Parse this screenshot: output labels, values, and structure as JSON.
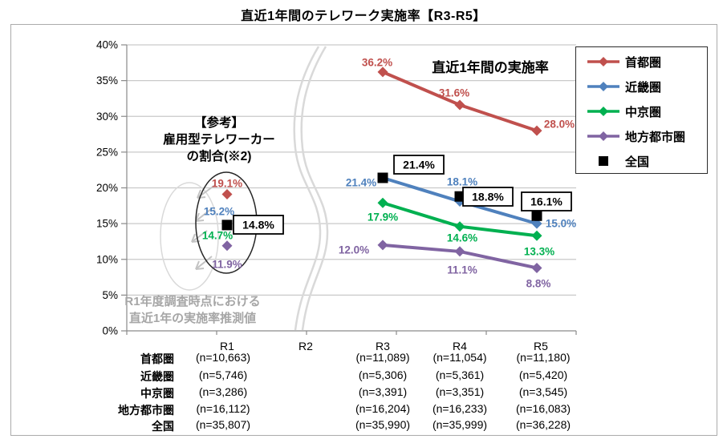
{
  "title": "直近1年間のテレワーク実施率【R3-R5】",
  "chart_data": {
    "type": "line",
    "title": "直近1年間のテレワーク実施率【R3-R5】",
    "categories": [
      "R1",
      "R2",
      "R3",
      "R4",
      "R5"
    ],
    "xlabel": "",
    "ylabel": "",
    "ylim": [
      0,
      40
    ],
    "y_tick_labels": [
      "0%",
      "5%",
      "10%",
      "15%",
      "20%",
      "25%",
      "30%",
      "35%",
      "40%"
    ],
    "grid": "horizontal",
    "legend_position": "top-right-box",
    "axis_break_note": "wavy break between R1 and R3; R2 has no data points",
    "series": [
      {
        "id": "shutoken",
        "name": "首都圏",
        "color": "#C0504D",
        "marker": "diamond",
        "line": true,
        "boxed_labels": false,
        "values": [
          19.1,
          null,
          36.2,
          31.6,
          28.0
        ]
      },
      {
        "id": "kinkiken",
        "name": "近畿圏",
        "color": "#4F81BD",
        "marker": "diamond",
        "line": true,
        "boxed_labels": false,
        "values": [
          15.2,
          null,
          21.4,
          18.1,
          15.0
        ]
      },
      {
        "id": "chukyoken",
        "name": "中京圏",
        "color": "#00B050",
        "marker": "diamond",
        "line": true,
        "boxed_labels": false,
        "values": [
          14.7,
          null,
          17.9,
          14.6,
          13.3
        ]
      },
      {
        "id": "chiho-toshiken",
        "name": "地方都市圏",
        "color": "#8064A2",
        "marker": "diamond",
        "line": true,
        "boxed_labels": false,
        "values": [
          11.9,
          null,
          12.0,
          11.1,
          8.8
        ]
      },
      {
        "id": "zenkoku",
        "name": "全国",
        "color": "#000000",
        "marker": "square",
        "line": false,
        "boxed_labels": true,
        "values": [
          14.8,
          null,
          21.4,
          18.8,
          16.1
        ]
      }
    ],
    "annotations": {
      "main": "直近1年間の実施率",
      "reference_title_lines": [
        "【参考】",
        "雇用型テレワーカー",
        "の割合(※2)"
      ],
      "estimate_note_lines": [
        "R1年度調査時点における",
        "直近1年の実施率推測値"
      ]
    },
    "sample_table": {
      "header": [
        "R1",
        "R2",
        "R3",
        "R4",
        "R5"
      ],
      "rows": [
        {
          "label": "首都圏",
          "values": [
            "(n=10,663)",
            "",
            "(n=11,089)",
            "(n=11,054)",
            "(n=11,180)"
          ]
        },
        {
          "label": "近畿圏",
          "values": [
            "(n=5,746)",
            "",
            "(n=5,306)",
            "(n=5,361)",
            "(n=5,420)"
          ]
        },
        {
          "label": "中京圏",
          "values": [
            "(n=3,286)",
            "",
            "(n=3,391)",
            "(n=3,351)",
            "(n=3,545)"
          ]
        },
        {
          "label": "地方都市圏",
          "values": [
            "(n=16,112)",
            "",
            "(n=16,204)",
            "(n=16,233)",
            "(n=16,083)"
          ]
        },
        {
          "label": "全国",
          "values": [
            "(n=35,807)",
            "",
            "(n=35,990)",
            "(n=35,999)",
            "(n=36,228)"
          ]
        }
      ]
    },
    "colors": {
      "grid": "#c9c9c9",
      "axis": "#8a8a8a",
      "muted_gray": "#d9d9d9",
      "arrow_gray": "#c3c3c3",
      "note_text": "#a6a6a6"
    }
  }
}
